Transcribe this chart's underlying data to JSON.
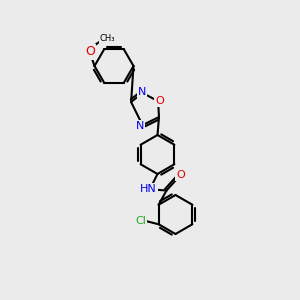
{
  "bg_color": "#ebebeb",
  "bond_color": "#000000",
  "bond_width": 1.5,
  "atom_colors": {
    "N": "#0000ee",
    "O": "#dd0000",
    "Cl": "#22aa22",
    "C": "#000000",
    "H": "#aaaaaa"
  },
  "font_size": 8
}
